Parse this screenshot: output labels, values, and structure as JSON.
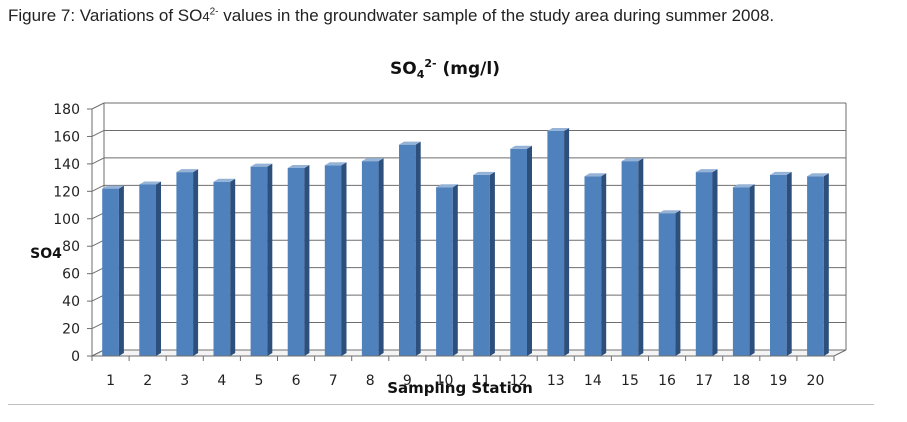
{
  "caption": {
    "prefix": "Figure 7: Variations of SO",
    "sub": "4",
    "sup": "2-",
    "suffix": " values in the groundwater sample of the study area during summer 2008."
  },
  "colors": {
    "bar_front": "#4f81bd",
    "bar_side": "#2c4f7c",
    "bar_top": "#95b3d7",
    "grid": "#6e6e6e",
    "wall": "#ffffff",
    "text": "#222222"
  },
  "chart_data": {
    "type": "bar",
    "title_base": "SO",
    "title_sub": "4",
    "title_sup": "2-",
    "title_tail": " (mg/l)",
    "xlabel": "Sampling Station",
    "ylabel": "SO4",
    "ylim": [
      0,
      180
    ],
    "yticks": [
      0,
      20,
      40,
      60,
      80,
      100,
      120,
      140,
      160,
      180
    ],
    "grid": true,
    "legend": "none",
    "categories": [
      "1",
      "2",
      "3",
      "4",
      "5",
      "6",
      "7",
      "8",
      "9",
      "10",
      "11",
      "12",
      "13",
      "14",
      "15",
      "16",
      "17",
      "18",
      "19",
      "20"
    ],
    "values": [
      122,
      125,
      134,
      127,
      138,
      137,
      139,
      142,
      154,
      123,
      132,
      151,
      164,
      131,
      142,
      104,
      134,
      123,
      132,
      131
    ]
  }
}
